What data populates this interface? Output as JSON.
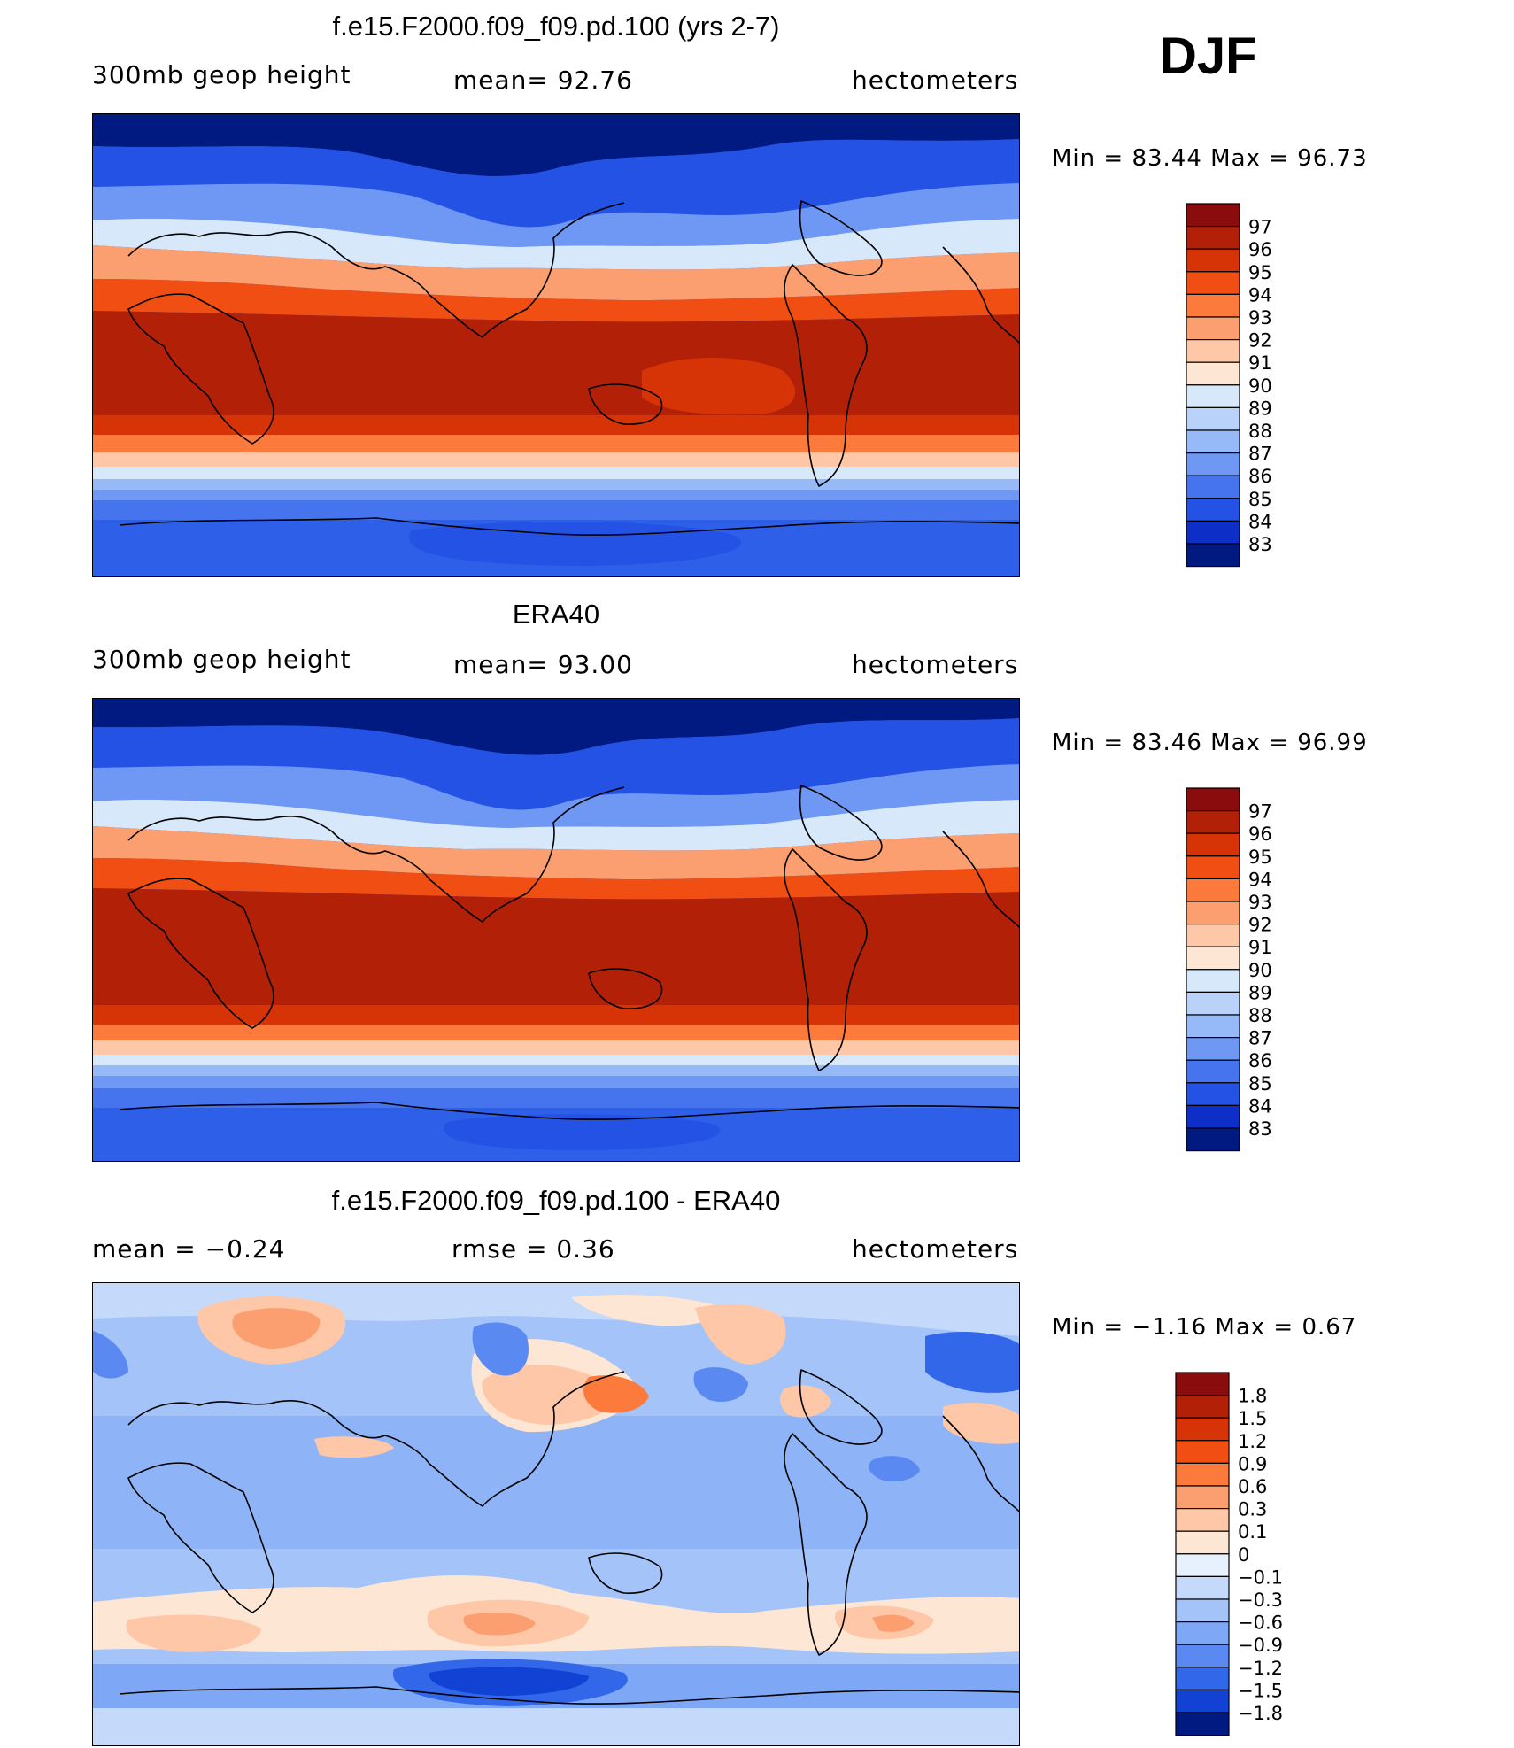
{
  "season": "DJF",
  "panels": [
    {
      "title": "f.e15.F2000.f09_f09.pd.100 (yrs 2-7)",
      "left_text": "300mb  geop  height",
      "center_text": "mean=   92.76",
      "right_text": "hectometers",
      "minmax": "Min  =    83.44  Max  =    96.73",
      "colorbar_labels": [
        "97",
        "96",
        "95",
        "94",
        "93",
        "92",
        "91",
        "90",
        "89",
        "88",
        "87",
        "86",
        "85",
        "84",
        "83"
      ]
    },
    {
      "title": "ERA40",
      "left_text": "300mb  geop  height",
      "center_text": "mean=   93.00",
      "right_text": "hectometers",
      "minmax": "Min  =    83.46  Max  =    96.99",
      "colorbar_labels": [
        "97",
        "96",
        "95",
        "94",
        "93",
        "92",
        "91",
        "90",
        "89",
        "88",
        "87",
        "86",
        "85",
        "84",
        "83"
      ]
    },
    {
      "title": "f.e15.F2000.f09_f09.pd.100 - ERA40",
      "left_text": "mean  =    −0.24",
      "center_text": "rmse  =     0.36",
      "right_text": "hectometers",
      "minmax": "Min  =   −1.16  Max  =     0.67",
      "colorbar_labels": [
        "1.8",
        "1.5",
        "1.2",
        "0.9",
        "0.6",
        "0.3",
        "0.1",
        "0",
        "−0.1",
        "−0.3",
        "−0.6",
        "−0.9",
        "−1.2",
        "−1.5",
        "−1.8"
      ]
    }
  ],
  "colors": {
    "abs_scale": [
      "#8b0c0c",
      "#b22008",
      "#d63406",
      "#f04e12",
      "#fb7a3c",
      "#fc9f70",
      "#fdc7a8",
      "#fee6d4",
      "#d8e8fb",
      "#b8d2fa",
      "#96b9f8",
      "#6e98f4",
      "#4673ee",
      "#2452e4",
      "#0d2fc8",
      "#001a82"
    ],
    "diff_scale": [
      "#8b0c0c",
      "#b22008",
      "#d63406",
      "#f04e12",
      "#fb7a3c",
      "#fc9f70",
      "#fdc7a8",
      "#fee6d4",
      "#e7f0fd",
      "#c5dafb",
      "#a3c3f9",
      "#7ea8f6",
      "#5a8af1",
      "#3267e9",
      "#1142d4",
      "#001a82"
    ]
  }
}
